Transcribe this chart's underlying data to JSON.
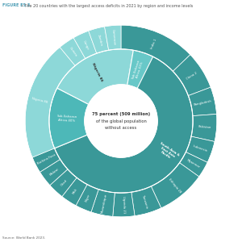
{
  "title": "FIGURE ES.3 • The 20 countries with the largest access deficits in 2021 by region and income levels",
  "source": "Source: World Bank 2023.",
  "center_text": [
    "75 percent (509 million)",
    "of the global population",
    "without access"
  ],
  "bg_color": "#ffffff",
  "color_ssa_light": "#8dd8d8",
  "color_ssa_dark": "#4db8b8",
  "color_asia": "#3a9898",
  "color_title": "#4a9cb5",
  "outer_ring": [
    {
      "name": "India",
      "value": 14,
      "color": "#3a9898",
      "label": "India 1"
    },
    {
      "name": "China",
      "value": 7,
      "color": "#3a9898",
      "label": "China 2"
    },
    {
      "name": "Bangladesh",
      "value": 5,
      "color": "#3a9898",
      "label": "Bangladesh"
    },
    {
      "name": "Pakistan",
      "value": 5,
      "color": "#3a9898",
      "label": "Pakistan"
    },
    {
      "name": "Indonesia",
      "value": 4,
      "color": "#3a9898",
      "label": "Indonesia"
    },
    {
      "name": "Myanmar",
      "value": 3,
      "color": "#3a9898",
      "label": "Myanmar"
    },
    {
      "name": "Ethiopia",
      "value": 9,
      "color": "#3a9898",
      "label": "Ethiopia 28"
    },
    {
      "name": "Tanzania",
      "value": 5,
      "color": "#3a9898",
      "label": "Tanzania"
    },
    {
      "name": "Uganda",
      "value": 4,
      "color": "#3a9898",
      "label": "Uganda 21"
    },
    {
      "name": "Mozambique",
      "value": 4,
      "color": "#3a9898",
      "label": "Mozambique"
    },
    {
      "name": "Niger",
      "value": 3,
      "color": "#3a9898",
      "label": "Niger"
    },
    {
      "name": "Mali",
      "value": 3,
      "color": "#3a9898",
      "label": "Mali"
    },
    {
      "name": "Chad",
      "value": 3,
      "color": "#3a9898",
      "label": "Chad"
    },
    {
      "name": "Malawi",
      "value": 3,
      "color": "#3a9898",
      "label": "Malawi"
    },
    {
      "name": "Burkina Faso",
      "value": 3,
      "color": "#3a9898",
      "label": "Burkina Faso"
    },
    {
      "name": "Nigeria",
      "value": 22,
      "color": "#8dd8d8",
      "label": "Nigeria 86"
    },
    {
      "name": "Guinea",
      "value": 3,
      "color": "#8dd8d8",
      "label": "Guinea"
    },
    {
      "name": "Congo",
      "value": 3,
      "color": "#8dd8d8",
      "label": "Congo"
    },
    {
      "name": "Zambia",
      "value": 3,
      "color": "#8dd8d8",
      "label": "Zambia"
    },
    {
      "name": "Cameroon",
      "value": 3,
      "color": "#8dd8d8",
      "label": "Cameroon"
    }
  ],
  "inner_ring": [
    {
      "name": "South Asia &\nEast Asia Pacific",
      "value": 38,
      "color": "#3a9898",
      "sublabel": "South Asia &\nEast Asia Pacific"
    },
    {
      "name": "Sub-Saharan Africa\n(East & Southern)",
      "value": 34,
      "color": "#4db8b8",
      "sublabel": "Sub-Saharan\nAfrica 40%"
    },
    {
      "name": "Nigeria",
      "value": 22,
      "color": "#8dd8d8",
      "sublabel": "Nigeria 86"
    },
    {
      "name": "Sub-Saharan Africa\n(West & Central)",
      "value": 9,
      "color": "#7dd0d0",
      "sublabel": "Sub-Saharan\nAfrica 41%"
    }
  ]
}
